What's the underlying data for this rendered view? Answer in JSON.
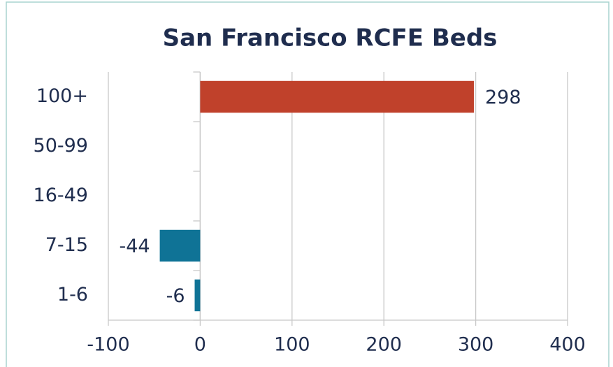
{
  "chart_data": {
    "type": "hbar",
    "title": "San Francisco RCFE Beds",
    "categories": [
      "100+",
      "50-99",
      "16-49",
      "7-15",
      "1-6"
    ],
    "values": [
      298,
      null,
      null,
      -44,
      -6
    ],
    "positive_color": "#c0412b",
    "negative_color": "#0f7396",
    "xlim": [
      -100,
      400
    ],
    "xticks": [
      -100,
      0,
      100,
      200,
      300,
      400
    ],
    "grid": true
  }
}
